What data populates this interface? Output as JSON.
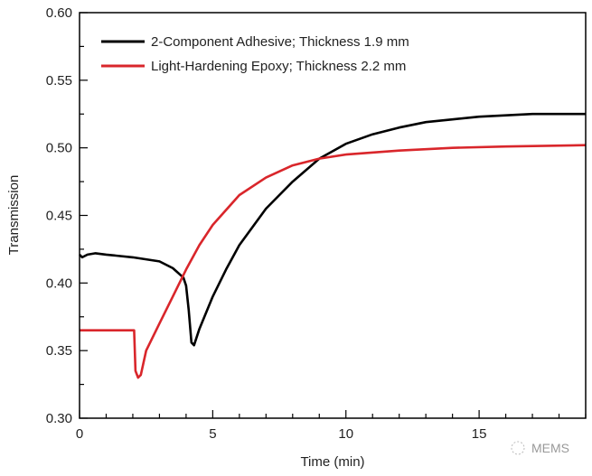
{
  "chart_data": {
    "type": "line",
    "title": "",
    "xlabel": "Time (min)",
    "ylabel": "Transmission",
    "xlim": [
      0,
      19
    ],
    "ylim": [
      0.3,
      0.6
    ],
    "xticks": [
      0,
      5,
      10,
      15
    ],
    "xtick_labels": [
      "0",
      "5",
      "10",
      "15"
    ],
    "yticks": [
      0.3,
      0.35,
      0.4,
      0.45,
      0.5,
      0.55,
      0.6
    ],
    "ytick_labels": [
      "0.30",
      "0.35",
      "0.40",
      "0.45",
      "0.50",
      "0.55",
      "0.60"
    ],
    "grid": false,
    "legend_position": "top-left",
    "series": [
      {
        "name": "2-Component Adhesive; Thickness 1.9 mm",
        "color": "#000000",
        "x": [
          0,
          0.1,
          0.3,
          0.6,
          1,
          2,
          3,
          3.5,
          3.9,
          4.0,
          4.1,
          4.2,
          4.3,
          4.5,
          5,
          5.5,
          6,
          7,
          8,
          9,
          10,
          11,
          12,
          13,
          14,
          15,
          16,
          17,
          18,
          19
        ],
        "y": [
          0.421,
          0.419,
          0.421,
          0.422,
          0.421,
          0.419,
          0.416,
          0.411,
          0.404,
          0.398,
          0.38,
          0.356,
          0.354,
          0.366,
          0.39,
          0.41,
          0.428,
          0.455,
          0.475,
          0.492,
          0.503,
          0.51,
          0.515,
          0.519,
          0.521,
          0.523,
          0.524,
          0.525,
          0.525,
          0.525
        ]
      },
      {
        "name": "Light-Hardening Epoxy; Thickness 2.2 mm",
        "color": "#d9262b",
        "x": [
          0,
          2.05,
          2.1,
          2.2,
          2.3,
          2.5,
          3,
          3.5,
          4,
          4.5,
          5,
          6,
          7,
          8,
          9,
          10,
          12,
          14,
          16,
          19
        ],
        "y": [
          0.365,
          0.365,
          0.335,
          0.33,
          0.332,
          0.35,
          0.37,
          0.39,
          0.41,
          0.428,
          0.443,
          0.465,
          0.478,
          0.487,
          0.492,
          0.495,
          0.498,
          0.5,
          0.501,
          0.502
        ]
      }
    ]
  },
  "watermark": "MEMS"
}
